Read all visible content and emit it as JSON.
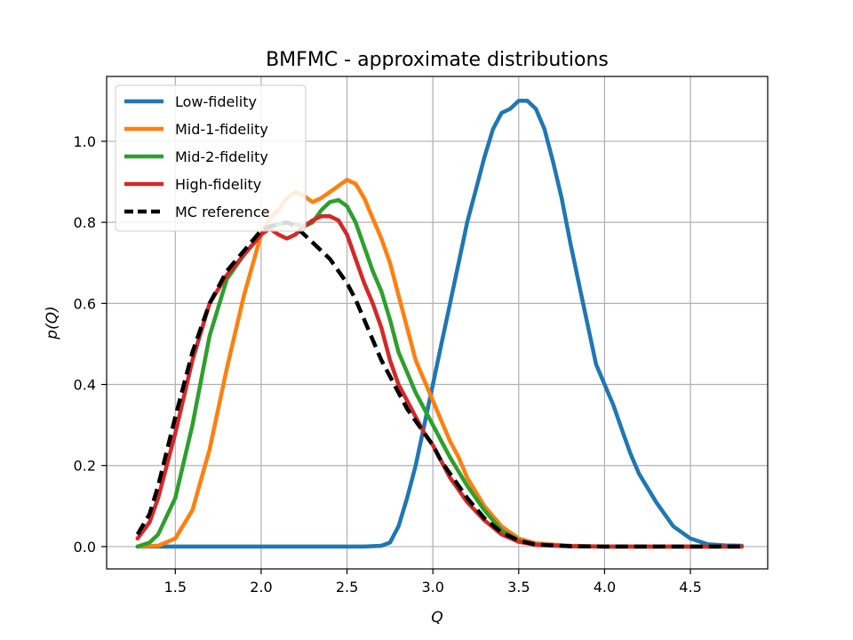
{
  "chart_data": {
    "type": "line",
    "title": "BMFMC - approximate distributions",
    "xlabel": "Q",
    "ylabel": "p(Q)",
    "xlim": [
      1.1,
      4.95
    ],
    "ylim": [
      -0.055,
      1.16
    ],
    "xticks": [
      1.5,
      2.0,
      2.5,
      3.0,
      3.5,
      4.0,
      4.5
    ],
    "yticks": [
      0.0,
      0.2,
      0.4,
      0.6,
      0.8,
      1.0
    ],
    "xtick_labels": [
      "1.5",
      "2.0",
      "2.5",
      "3.0",
      "3.5",
      "4.0",
      "4.5"
    ],
    "ytick_labels": [
      "0.0",
      "0.2",
      "0.4",
      "0.6",
      "0.8",
      "1.0"
    ],
    "grid": true,
    "legend_position": "upper-left",
    "series": [
      {
        "name": "Low-fidelity",
        "color": "#1f77b4",
        "style": "solid",
        "points": [
          [
            1.28,
            0.0
          ],
          [
            2.6,
            0.0
          ],
          [
            2.7,
            0.002
          ],
          [
            2.75,
            0.01
          ],
          [
            2.8,
            0.05
          ],
          [
            2.85,
            0.12
          ],
          [
            2.9,
            0.2
          ],
          [
            2.95,
            0.3
          ],
          [
            3.0,
            0.4
          ],
          [
            3.05,
            0.5
          ],
          [
            3.1,
            0.6
          ],
          [
            3.15,
            0.7
          ],
          [
            3.2,
            0.8
          ],
          [
            3.25,
            0.88
          ],
          [
            3.3,
            0.96
          ],
          [
            3.35,
            1.03
          ],
          [
            3.4,
            1.07
          ],
          [
            3.45,
            1.08
          ],
          [
            3.5,
            1.1
          ],
          [
            3.55,
            1.1
          ],
          [
            3.6,
            1.08
          ],
          [
            3.65,
            1.03
          ],
          [
            3.7,
            0.95
          ],
          [
            3.75,
            0.86
          ],
          [
            3.8,
            0.75
          ],
          [
            3.85,
            0.65
          ],
          [
            3.9,
            0.55
          ],
          [
            3.95,
            0.45
          ],
          [
            4.0,
            0.4
          ],
          [
            4.05,
            0.35
          ],
          [
            4.1,
            0.29
          ],
          [
            4.15,
            0.23
          ],
          [
            4.2,
            0.18
          ],
          [
            4.3,
            0.11
          ],
          [
            4.4,
            0.05
          ],
          [
            4.5,
            0.02
          ],
          [
            4.6,
            0.006
          ],
          [
            4.7,
            0.003
          ],
          [
            4.8,
            0.002
          ]
        ]
      },
      {
        "name": "Mid-1-fidelity",
        "color": "#ff7f0e",
        "style": "solid",
        "points": [
          [
            1.28,
            0.0
          ],
          [
            1.4,
            0.002
          ],
          [
            1.5,
            0.02
          ],
          [
            1.6,
            0.09
          ],
          [
            1.7,
            0.24
          ],
          [
            1.8,
            0.44
          ],
          [
            1.9,
            0.62
          ],
          [
            2.0,
            0.77
          ],
          [
            2.05,
            0.81
          ],
          [
            2.1,
            0.83
          ],
          [
            2.15,
            0.86
          ],
          [
            2.2,
            0.875
          ],
          [
            2.25,
            0.865
          ],
          [
            2.3,
            0.85
          ],
          [
            2.35,
            0.86
          ],
          [
            2.4,
            0.875
          ],
          [
            2.45,
            0.89
          ],
          [
            2.5,
            0.905
          ],
          [
            2.55,
            0.895
          ],
          [
            2.6,
            0.86
          ],
          [
            2.65,
            0.81
          ],
          [
            2.7,
            0.76
          ],
          [
            2.75,
            0.7
          ],
          [
            2.8,
            0.62
          ],
          [
            2.85,
            0.54
          ],
          [
            2.9,
            0.46
          ],
          [
            2.95,
            0.41
          ],
          [
            3.0,
            0.36
          ],
          [
            3.05,
            0.31
          ],
          [
            3.1,
            0.26
          ],
          [
            3.15,
            0.22
          ],
          [
            3.2,
            0.17
          ],
          [
            3.3,
            0.1
          ],
          [
            3.4,
            0.05
          ],
          [
            3.5,
            0.02
          ],
          [
            3.6,
            0.008
          ],
          [
            3.8,
            0.002
          ],
          [
            4.0,
            0.0
          ],
          [
            4.8,
            0.0
          ]
        ]
      },
      {
        "name": "Mid-2-fidelity",
        "color": "#2ca02c",
        "style": "solid",
        "points": [
          [
            1.28,
            0.0
          ],
          [
            1.35,
            0.01
          ],
          [
            1.4,
            0.03
          ],
          [
            1.5,
            0.12
          ],
          [
            1.6,
            0.3
          ],
          [
            1.7,
            0.52
          ],
          [
            1.8,
            0.66
          ],
          [
            1.9,
            0.72
          ],
          [
            2.0,
            0.77
          ],
          [
            2.05,
            0.79
          ],
          [
            2.1,
            0.795
          ],
          [
            2.15,
            0.8
          ],
          [
            2.2,
            0.795
          ],
          [
            2.25,
            0.79
          ],
          [
            2.3,
            0.8
          ],
          [
            2.35,
            0.83
          ],
          [
            2.4,
            0.85
          ],
          [
            2.45,
            0.855
          ],
          [
            2.5,
            0.84
          ],
          [
            2.55,
            0.8
          ],
          [
            2.6,
            0.74
          ],
          [
            2.65,
            0.68
          ],
          [
            2.7,
            0.63
          ],
          [
            2.75,
            0.56
          ],
          [
            2.8,
            0.48
          ],
          [
            2.85,
            0.43
          ],
          [
            2.9,
            0.38
          ],
          [
            2.95,
            0.34
          ],
          [
            3.0,
            0.3
          ],
          [
            3.05,
            0.26
          ],
          [
            3.1,
            0.22
          ],
          [
            3.2,
            0.15
          ],
          [
            3.3,
            0.09
          ],
          [
            3.4,
            0.04
          ],
          [
            3.5,
            0.015
          ],
          [
            3.6,
            0.005
          ],
          [
            3.8,
            0.001
          ],
          [
            4.0,
            0.0
          ],
          [
            4.8,
            0.0
          ]
        ]
      },
      {
        "name": "High-fidelity",
        "color": "#d62728",
        "style": "solid",
        "points": [
          [
            1.28,
            0.02
          ],
          [
            1.35,
            0.06
          ],
          [
            1.4,
            0.12
          ],
          [
            1.5,
            0.28
          ],
          [
            1.6,
            0.46
          ],
          [
            1.7,
            0.6
          ],
          [
            1.8,
            0.67
          ],
          [
            1.9,
            0.72
          ],
          [
            2.0,
            0.77
          ],
          [
            2.05,
            0.785
          ],
          [
            2.1,
            0.77
          ],
          [
            2.15,
            0.76
          ],
          [
            2.2,
            0.77
          ],
          [
            2.25,
            0.79
          ],
          [
            2.3,
            0.805
          ],
          [
            2.35,
            0.815
          ],
          [
            2.4,
            0.815
          ],
          [
            2.45,
            0.805
          ],
          [
            2.5,
            0.77
          ],
          [
            2.55,
            0.71
          ],
          [
            2.6,
            0.65
          ],
          [
            2.65,
            0.6
          ],
          [
            2.7,
            0.54
          ],
          [
            2.75,
            0.46
          ],
          [
            2.8,
            0.4
          ],
          [
            2.85,
            0.36
          ],
          [
            2.9,
            0.32
          ],
          [
            2.95,
            0.28
          ],
          [
            3.0,
            0.25
          ],
          [
            3.05,
            0.21
          ],
          [
            3.1,
            0.17
          ],
          [
            3.2,
            0.11
          ],
          [
            3.3,
            0.065
          ],
          [
            3.4,
            0.03
          ],
          [
            3.5,
            0.012
          ],
          [
            3.6,
            0.004
          ],
          [
            3.8,
            0.001
          ],
          [
            4.0,
            0.0
          ],
          [
            4.8,
            0.0
          ]
        ]
      },
      {
        "name": "MC reference",
        "color": "#000000",
        "style": "dashed",
        "points": [
          [
            1.28,
            0.03
          ],
          [
            1.35,
            0.08
          ],
          [
            1.4,
            0.15
          ],
          [
            1.5,
            0.32
          ],
          [
            1.6,
            0.48
          ],
          [
            1.7,
            0.6
          ],
          [
            1.8,
            0.68
          ],
          [
            1.9,
            0.73
          ],
          [
            2.0,
            0.78
          ],
          [
            2.05,
            0.79
          ],
          [
            2.1,
            0.795
          ],
          [
            2.15,
            0.8
          ],
          [
            2.2,
            0.79
          ],
          [
            2.25,
            0.77
          ],
          [
            2.3,
            0.75
          ],
          [
            2.35,
            0.73
          ],
          [
            2.4,
            0.71
          ],
          [
            2.45,
            0.68
          ],
          [
            2.5,
            0.65
          ],
          [
            2.55,
            0.61
          ],
          [
            2.6,
            0.56
          ],
          [
            2.65,
            0.51
          ],
          [
            2.7,
            0.46
          ],
          [
            2.75,
            0.42
          ],
          [
            2.8,
            0.38
          ],
          [
            2.85,
            0.34
          ],
          [
            2.9,
            0.31
          ],
          [
            2.95,
            0.28
          ],
          [
            3.0,
            0.25
          ],
          [
            3.05,
            0.21
          ],
          [
            3.1,
            0.18
          ],
          [
            3.2,
            0.12
          ],
          [
            3.3,
            0.07
          ],
          [
            3.4,
            0.035
          ],
          [
            3.5,
            0.015
          ],
          [
            3.6,
            0.005
          ],
          [
            3.8,
            0.001
          ],
          [
            4.0,
            0.0
          ],
          [
            4.8,
            0.0
          ]
        ]
      }
    ]
  }
}
